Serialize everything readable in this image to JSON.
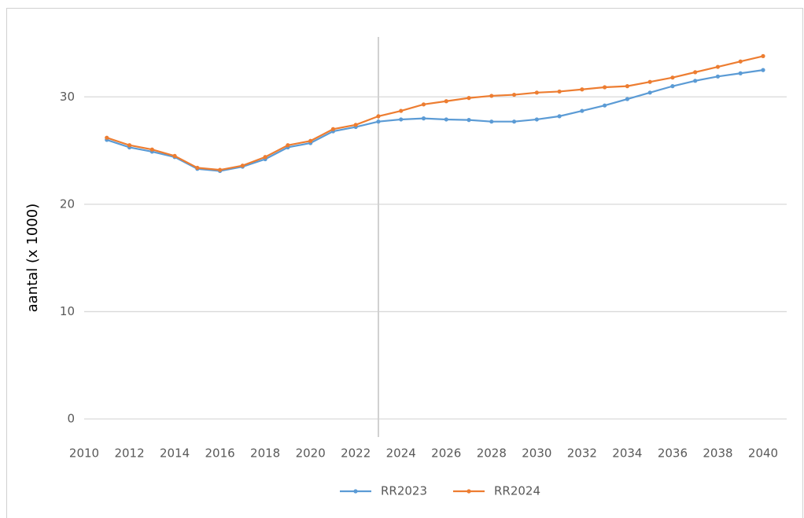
{
  "chart_data": {
    "type": "line",
    "ylabel": "aantal (x 1000)",
    "x": [
      2011,
      2012,
      2013,
      2014,
      2015,
      2016,
      2017,
      2018,
      2019,
      2020,
      2021,
      2022,
      2023,
      2024,
      2025,
      2026,
      2027,
      2028,
      2029,
      2030,
      2031,
      2032,
      2033,
      2034,
      2035,
      2036,
      2037,
      2038,
      2039,
      2040
    ],
    "series": [
      {
        "name": "RR2023",
        "color": "#5b9bd5",
        "values": [
          26.0,
          25.3,
          24.9,
          24.4,
          23.3,
          23.1,
          23.5,
          24.2,
          25.3,
          25.7,
          26.8,
          27.2,
          27.7,
          27.9,
          28.0,
          27.9,
          27.85,
          27.7,
          27.7,
          27.9,
          28.2,
          28.7,
          29.2,
          29.8,
          30.4,
          31.0,
          31.5,
          31.9,
          32.2,
          32.5
        ]
      },
      {
        "name": "RR2024",
        "color": "#ed7d31",
        "values": [
          26.2,
          25.5,
          25.1,
          24.5,
          23.4,
          23.2,
          23.6,
          24.4,
          25.5,
          25.9,
          27.0,
          27.4,
          28.2,
          28.7,
          29.3,
          29.6,
          29.9,
          30.1,
          30.2,
          30.4,
          30.5,
          30.7,
          30.9,
          31.0,
          31.4,
          31.8,
          32.3,
          32.8,
          33.3,
          33.8
        ]
      }
    ],
    "xlim": [
      2010,
      2040
    ],
    "xticks": [
      2010,
      2012,
      2014,
      2016,
      2018,
      2020,
      2022,
      2024,
      2026,
      2028,
      2030,
      2032,
      2034,
      2036,
      2038,
      2040
    ],
    "ylim": [
      0,
      35
    ],
    "yticks": [
      0,
      10,
      20,
      30
    ],
    "grid": true,
    "vline": 2023,
    "legend": "bottom"
  }
}
